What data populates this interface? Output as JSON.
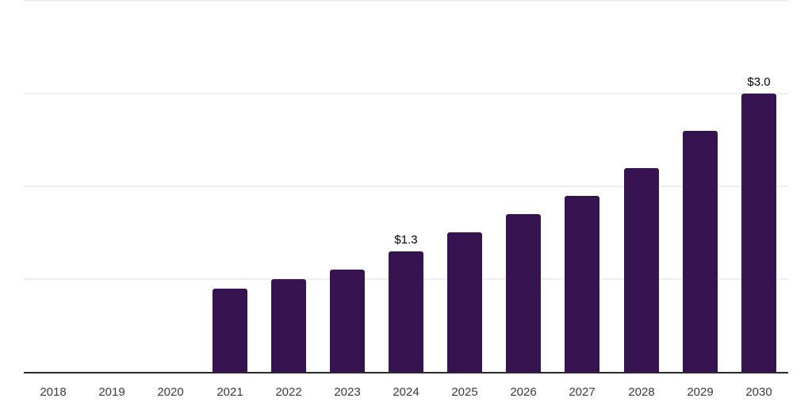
{
  "chart_data": {
    "type": "bar",
    "categories": [
      "2018",
      "2019",
      "2020",
      "2021",
      "2022",
      "2023",
      "2024",
      "2025",
      "2026",
      "2027",
      "2028",
      "2029",
      "2030"
    ],
    "values": [
      0,
      0,
      0,
      0.9,
      1.0,
      1.1,
      1.3,
      1.5,
      1.7,
      1.9,
      2.2,
      2.6,
      3.0
    ],
    "data_labels": [
      "",
      "",
      "",
      "",
      "",
      "",
      "$1.3",
      "",
      "",
      "",
      "",
      "",
      "$3.0"
    ],
    "ylim": [
      0,
      4
    ],
    "gridline_step": 1,
    "grid": true,
    "legend": "none",
    "y_tick_labels_visible": false,
    "colors": {
      "bar": "#371450",
      "axis_line": "#2b2b2b",
      "gridline": "#f0f0f0",
      "tick_label": "#3b3b3b",
      "data_label": "#000000",
      "background": "#ffffff"
    }
  }
}
